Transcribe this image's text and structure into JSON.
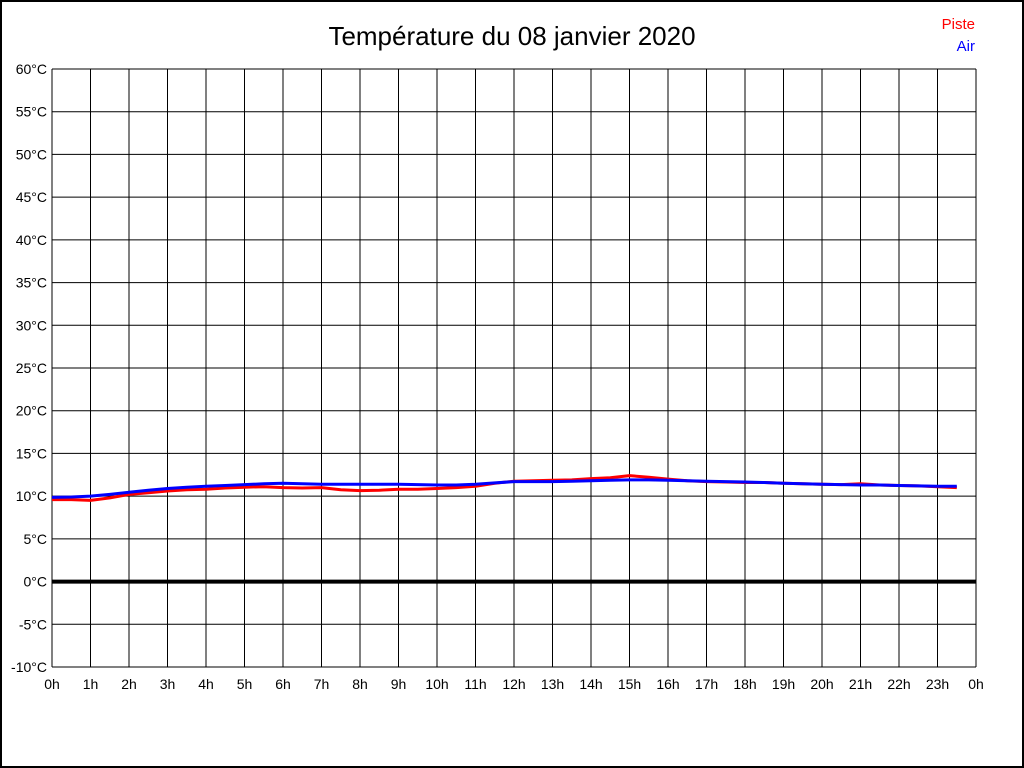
{
  "title": "Température du 08 janvier 2020",
  "legend": {
    "items": [
      {
        "label": "Piste",
        "color": "#ff0000"
      },
      {
        "label": "Air",
        "color": "#0000ff"
      }
    ],
    "position": "top-right"
  },
  "chart_data": {
    "type": "line",
    "title": "Température du 08 janvier 2020",
    "xlabel": "",
    "ylabel": "",
    "xlim": [
      0,
      24
    ],
    "ylim": [
      -10,
      60
    ],
    "y_step": 5,
    "x_step_hours": 1,
    "grid": true,
    "zero_line_bold": true,
    "legend_position": "top-right",
    "x_tick_labels": [
      "0h",
      "1h",
      "2h",
      "3h",
      "4h",
      "5h",
      "6h",
      "7h",
      "8h",
      "9h",
      "10h",
      "11h",
      "12h",
      "13h",
      "14h",
      "15h",
      "16h",
      "17h",
      "18h",
      "19h",
      "20h",
      "21h",
      "22h",
      "23h",
      "0h"
    ],
    "y_tick_labels": [
      "60°C",
      "55°C",
      "50°C",
      "45°C",
      "40°C",
      "35°C",
      "30°C",
      "25°C",
      "20°C",
      "15°C",
      "10°C",
      "5°C",
      "0°C",
      "-5°C",
      "-10°C"
    ],
    "x_hours": [
      0,
      0.5,
      1,
      1.5,
      2,
      2.5,
      3,
      3.5,
      4,
      4.5,
      5,
      5.5,
      6,
      6.5,
      7,
      7.5,
      8,
      8.5,
      9,
      9.5,
      10,
      10.5,
      11,
      11.5,
      12,
      12.5,
      13,
      13.5,
      14,
      14.5,
      15,
      15.5,
      16,
      16.5,
      17,
      17.5,
      18,
      18.5,
      19,
      19.5,
      20,
      20.5,
      21,
      21.5,
      22,
      22.5,
      23,
      23.5
    ],
    "series": [
      {
        "name": "Piste",
        "color": "#ff0000",
        "values": [
          9.6,
          9.6,
          9.5,
          9.8,
          10.2,
          10.4,
          10.6,
          10.75,
          10.8,
          10.95,
          11.05,
          11.1,
          11.0,
          10.95,
          11.0,
          10.75,
          10.65,
          10.7,
          10.8,
          10.8,
          10.9,
          11.0,
          11.15,
          11.5,
          11.75,
          11.8,
          11.85,
          11.9,
          12.05,
          12.15,
          12.4,
          12.2,
          12.0,
          11.8,
          11.7,
          11.65,
          11.6,
          11.6,
          11.5,
          11.45,
          11.4,
          11.35,
          11.45,
          11.3,
          11.25,
          11.2,
          11.1,
          11.0
        ]
      },
      {
        "name": "Air",
        "color": "#0000ff",
        "values": [
          9.85,
          9.9,
          10.0,
          10.2,
          10.45,
          10.7,
          10.9,
          11.05,
          11.15,
          11.25,
          11.35,
          11.45,
          11.5,
          11.45,
          11.4,
          11.4,
          11.4,
          11.4,
          11.4,
          11.35,
          11.3,
          11.3,
          11.4,
          11.55,
          11.7,
          11.7,
          11.7,
          11.75,
          11.8,
          11.85,
          11.9,
          11.9,
          11.85,
          11.8,
          11.75,
          11.7,
          11.65,
          11.6,
          11.5,
          11.45,
          11.4,
          11.35,
          11.3,
          11.3,
          11.25,
          11.2,
          11.15,
          11.15
        ]
      }
    ]
  }
}
